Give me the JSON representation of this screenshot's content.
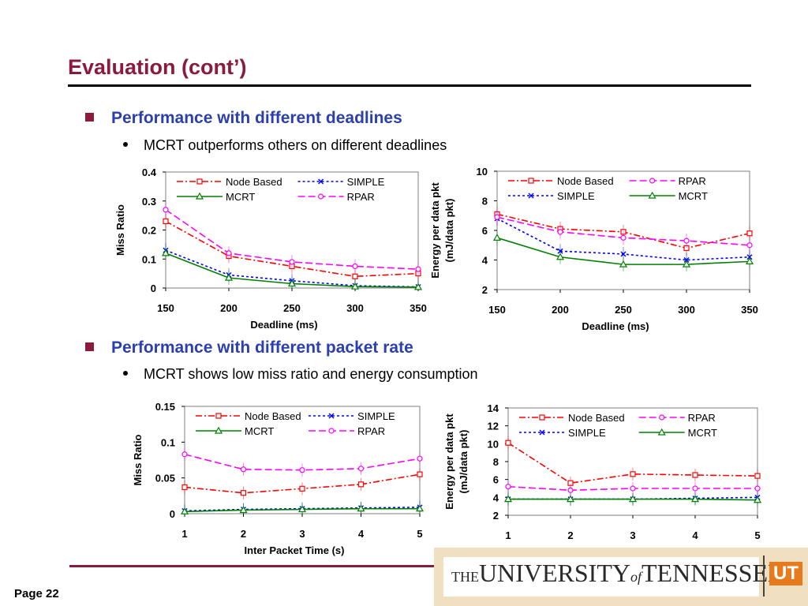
{
  "slide": {
    "title": "Evaluation (cont’)",
    "bullet1": "Performance with different deadlines",
    "sub1": "MCRT outperforms others on different deadlines",
    "bullet2": "Performance with different packet rate",
    "sub2": "MCRT shows low miss ratio and energy consumption",
    "page": "Page 22",
    "logo": {
      "the": "THE",
      "university": "UNIVERSITY",
      "of": "of",
      "tennessee": "TENNESSEE",
      "mark": "UT"
    },
    "colors": {
      "title": "#8b1a3c",
      "bullet_text": "#2b3fb0",
      "logo_orange": "#e87a1e"
    }
  },
  "chart_data": [
    {
      "type": "line",
      "id": "miss-deadline",
      "x": [
        150,
        200,
        250,
        300,
        350
      ],
      "xticks": [
        "150",
        "200",
        "250",
        "300",
        "350"
      ],
      "yticks": [
        "0",
        "0.1",
        "0.2",
        "0.3",
        "0.4"
      ],
      "xlabel": "Deadline (ms)",
      "ylabel": "Miss Ratio",
      "xlim": [
        150,
        350
      ],
      "ylim": [
        0,
        0.4
      ],
      "grid": false,
      "legend_placement": "top",
      "legend_order": [
        0,
        1,
        2,
        3
      ],
      "series": [
        {
          "name": "Node Based",
          "values": [
            0.23,
            0.11,
            0.075,
            0.04,
            0.05
          ],
          "color": "#ff0000",
          "dash": "8,3,2,3",
          "marker": "square"
        },
        {
          "name": "SIMPLE",
          "values": [
            0.13,
            0.045,
            0.025,
            0.008,
            0.004
          ],
          "color": "#0000ff",
          "dash": "3,3",
          "marker": "x"
        },
        {
          "name": "MCRT",
          "values": [
            0.12,
            0.035,
            0.015,
            0.005,
            0.003
          ],
          "color": "#008000",
          "dash": "",
          "marker": "triangle"
        },
        {
          "name": "RPAR",
          "values": [
            0.27,
            0.12,
            0.09,
            0.075,
            0.065
          ],
          "color": "#ff00ff",
          "dash": "9,4",
          "marker": "circle"
        }
      ]
    },
    {
      "type": "line",
      "id": "energy-deadline",
      "x": [
        150,
        200,
        250,
        300,
        350
      ],
      "xticks": [
        "150",
        "200",
        "250",
        "300",
        "350"
      ],
      "yticks": [
        "2",
        "4",
        "6",
        "8",
        "10"
      ],
      "xlabel": "Deadline (ms)",
      "ylabel": "Energy per data pkt",
      "ylabel2": "(mJ/data pkt)",
      "xlim": [
        150,
        350
      ],
      "ylim": [
        2,
        10
      ],
      "grid": false,
      "legend_placement": "top",
      "legend_order": [
        0,
        3,
        1,
        2
      ],
      "series": [
        {
          "name": "Node Based",
          "values": [
            7.1,
            6.1,
            5.9,
            4.8,
            5.8
          ],
          "color": "#ff0000",
          "dash": "8,3,2,3",
          "marker": "square"
        },
        {
          "name": "SIMPLE",
          "values": [
            6.8,
            4.6,
            4.4,
            4.0,
            4.2
          ],
          "color": "#0000ff",
          "dash": "3,3",
          "marker": "x"
        },
        {
          "name": "MCRT",
          "values": [
            5.5,
            4.2,
            3.7,
            3.7,
            3.9
          ],
          "color": "#008000",
          "dash": "",
          "marker": "triangle"
        },
        {
          "name": "RPAR",
          "values": [
            6.9,
            5.9,
            5.5,
            5.3,
            5.0
          ],
          "color": "#ff00ff",
          "dash": "9,4",
          "marker": "circle"
        }
      ]
    },
    {
      "type": "line",
      "id": "miss-packet",
      "x": [
        1,
        2,
        3,
        4,
        5
      ],
      "xticks": [
        "1",
        "2",
        "3",
        "4",
        "5"
      ],
      "yticks": [
        "0",
        "0.05",
        "0.1",
        "0.15"
      ],
      "xlabel": "Inter Packet Time (s)",
      "ylabel": "Miss Ratio",
      "xlim": [
        1,
        5
      ],
      "ylim": [
        0,
        0.15
      ],
      "grid": false,
      "legend_placement": "top",
      "legend_order": [
        0,
        1,
        2,
        3
      ],
      "series": [
        {
          "name": "Node Based",
          "values": [
            0.037,
            0.029,
            0.035,
            0.041,
            0.055
          ],
          "color": "#ff0000",
          "dash": "8,3,2,3",
          "marker": "square"
        },
        {
          "name": "SIMPLE",
          "values": [
            0.004,
            0.006,
            0.007,
            0.008,
            0.009
          ],
          "color": "#0000ff",
          "dash": "3,3",
          "marker": "x"
        },
        {
          "name": "MCRT",
          "values": [
            0.003,
            0.005,
            0.006,
            0.007,
            0.007
          ],
          "color": "#008000",
          "dash": "",
          "marker": "triangle"
        },
        {
          "name": "RPAR",
          "values": [
            0.083,
            0.062,
            0.061,
            0.063,
            0.077
          ],
          "color": "#ff00ff",
          "dash": "9,4",
          "marker": "circle"
        }
      ]
    },
    {
      "type": "line",
      "id": "energy-packet",
      "x": [
        1,
        2,
        3,
        4,
        5
      ],
      "xticks": [
        "1",
        "2",
        "3",
        "4",
        "5"
      ],
      "yticks": [
        "2",
        "4",
        "6",
        "8",
        "10",
        "12",
        "14"
      ],
      "xlabel": "Inter Packet Time (s)",
      "ylabel": "Energy per data pkt",
      "ylabel2": "(mJ/data pkt)",
      "xlim": [
        1,
        5
      ],
      "ylim": [
        2,
        14
      ],
      "grid": false,
      "legend_placement": "top",
      "legend_order": [
        0,
        3,
        1,
        2
      ],
      "series": [
        {
          "name": "Node Based",
          "values": [
            10.1,
            5.6,
            6.6,
            6.5,
            6.4
          ],
          "color": "#ff0000",
          "dash": "8,3,2,3",
          "marker": "square"
        },
        {
          "name": "SIMPLE",
          "values": [
            3.8,
            3.8,
            3.8,
            3.9,
            4.0
          ],
          "color": "#0000ff",
          "dash": "3,3",
          "marker": "x"
        },
        {
          "name": "MCRT",
          "values": [
            3.8,
            3.8,
            3.8,
            3.8,
            3.7
          ],
          "color": "#008000",
          "dash": "",
          "marker": "triangle"
        },
        {
          "name": "RPAR",
          "values": [
            5.2,
            4.8,
            5.0,
            5.0,
            5.0
          ],
          "color": "#ff00ff",
          "dash": "9,4",
          "marker": "circle"
        }
      ]
    }
  ]
}
